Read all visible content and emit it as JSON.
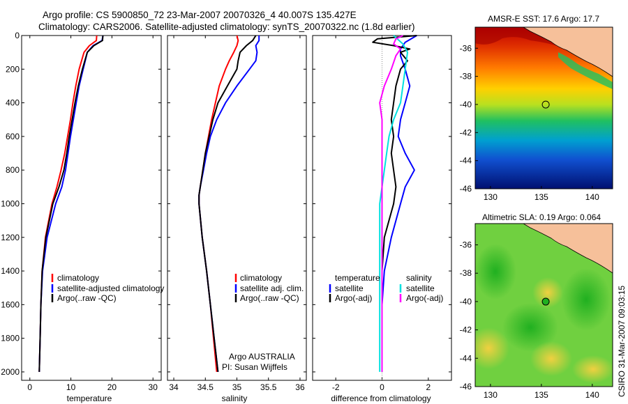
{
  "figure": {
    "title_line1": "Argo profile: CS 5900850_72 23-Mar-2007 20070326_4 40.007S 135.427E",
    "title_line2": "Climatology: CARS2006. Satellite-adjusted climatology: synTS_20070322.nc (1.8d earlier)",
    "side_caption": "CSIRO 31-Mar-2007 09:03:15",
    "credit_line1": "Argo AUSTRALIA",
    "credit_line2": "PI: Susan Wijffels"
  },
  "colors": {
    "climatology": "#ff0000",
    "satellite": "#0000ff",
    "argo": "#000000",
    "salinity_satellite": "#00e0e0",
    "salinity_argo": "#ff00ff"
  },
  "chart_data": [
    {
      "type": "line",
      "xlabel": "temperature",
      "ylabel": "",
      "xlim": [
        -2,
        32
      ],
      "ylim": [
        2050,
        0
      ],
      "xticks": [
        "0",
        "10",
        "20",
        "30"
      ],
      "yticks": [
        "0",
        "200",
        "400",
        "600",
        "800",
        "1000",
        "1200",
        "1400",
        "1600",
        "1800",
        "2000"
      ],
      "legend": [
        "climatology",
        "satellite-adjusted climatology",
        "Argo(..raw -QC)"
      ],
      "legend_position": "lower-middle",
      "series": [
        {
          "name": "climatology",
          "color": "#ff0000",
          "depth": [
            0,
            30,
            60,
            100,
            150,
            200,
            300,
            400,
            500,
            600,
            700,
            800,
            900,
            1000,
            1200,
            1400,
            1600,
            1800,
            2000
          ],
          "values": [
            16.3,
            16.2,
            14.5,
            13.2,
            12.6,
            12.0,
            11.2,
            10.5,
            9.9,
            9.2,
            8.5,
            7.6,
            6.6,
            5.4,
            3.8,
            3.0,
            2.7,
            2.5,
            2.3
          ]
        },
        {
          "name": "satellite-adjusted climatology",
          "color": "#0000ff",
          "depth": [
            0,
            30,
            60,
            100,
            150,
            200,
            300,
            400,
            500,
            600,
            700,
            800,
            900,
            1000,
            1200,
            1400,
            1600,
            1800,
            2000
          ],
          "values": [
            17.8,
            17.6,
            15.4,
            14.0,
            13.5,
            13.0,
            12.0,
            11.3,
            10.6,
            9.9,
            9.3,
            8.7,
            7.8,
            6.3,
            4.2,
            3.1,
            2.7,
            2.5,
            2.3
          ]
        },
        {
          "name": "Argo(..raw -QC)",
          "color": "#000000",
          "depth": [
            0,
            30,
            60,
            100,
            150,
            200,
            300,
            400,
            500,
            600,
            700,
            800,
            900,
            1000,
            1200,
            1400,
            1600,
            1800,
            2000
          ],
          "values": [
            17.8,
            17.7,
            15.6,
            14.0,
            13.4,
            12.8,
            11.8,
            11.0,
            10.3,
            9.6,
            9.0,
            8.3,
            7.1,
            5.6,
            3.9,
            3.0,
            2.7,
            2.5,
            2.3
          ]
        }
      ]
    },
    {
      "type": "line",
      "xlabel": "salinity",
      "ylabel": "",
      "xlim": [
        33.9,
        36.1
      ],
      "ylim": [
        2050,
        0
      ],
      "xticks": [
        "34",
        "34.5",
        "35",
        "35.5",
        "36"
      ],
      "legend": [
        "climatology",
        "satellite adj. clim.",
        "Argo(..raw -QC)"
      ],
      "legend_position": "lower-right",
      "series": [
        {
          "name": "climatology",
          "color": "#ff0000",
          "depth": [
            0,
            30,
            60,
            100,
            150,
            200,
            300,
            400,
            500,
            600,
            700,
            800,
            900,
            950,
            1000,
            1200,
            1400,
            1600,
            1800,
            2000
          ],
          "values": [
            35.0,
            35.02,
            35.0,
            34.95,
            34.88,
            34.82,
            34.72,
            34.66,
            34.6,
            34.55,
            34.5,
            34.46,
            34.42,
            34.4,
            34.4,
            34.45,
            34.52,
            34.58,
            34.63,
            34.68
          ]
        },
        {
          "name": "satellite adj. clim.",
          "color": "#0000ff",
          "depth": [
            0,
            30,
            60,
            100,
            150,
            200,
            300,
            400,
            500,
            600,
            700,
            800,
            900,
            950,
            1000,
            1200,
            1400,
            1600,
            1800,
            2000
          ],
          "values": [
            35.35,
            35.35,
            35.3,
            35.32,
            35.3,
            35.2,
            35.0,
            34.82,
            34.68,
            34.58,
            34.52,
            34.47,
            34.42,
            34.4,
            34.4,
            34.45,
            34.52,
            34.58,
            34.64,
            34.7
          ]
        },
        {
          "name": "Argo(..raw -QC)",
          "color": "#000000",
          "depth": [
            0,
            30,
            60,
            100,
            150,
            200,
            300,
            400,
            500,
            600,
            700,
            800,
            900,
            950,
            1000,
            1200,
            1400,
            1600,
            1800,
            2000
          ],
          "values": [
            35.3,
            35.25,
            35.15,
            35.05,
            35.02,
            35.0,
            34.85,
            34.7,
            34.62,
            34.56,
            34.5,
            34.46,
            34.42,
            34.4,
            34.4,
            34.45,
            34.52,
            34.58,
            34.64,
            34.7
          ]
        }
      ]
    },
    {
      "type": "line",
      "xlabel": "difference from climatology",
      "ylabel": "",
      "xlim": [
        -3,
        3
      ],
      "ylim": [
        2050,
        0
      ],
      "xticks": [
        "-2",
        "0",
        "2"
      ],
      "legend_groups": [
        {
          "title": "temperature",
          "items": [
            "satellite",
            "Argo(-adj)"
          ]
        },
        {
          "title": "salinity",
          "items": [
            "satellite",
            "Argo(-adj)"
          ]
        }
      ],
      "legend_position": "lower",
      "series": [
        {
          "name": "temperature satellite",
          "color": "#0000ff",
          "depth": [
            0,
            40,
            80,
            120,
            200,
            300,
            400,
            500,
            600,
            700,
            800,
            900,
            1000,
            1200,
            1400,
            1600,
            1800,
            2000
          ],
          "values": [
            1.5,
            1.0,
            0.8,
            0.8,
            1.0,
            1.2,
            1.0,
            0.8,
            0.7,
            1.0,
            1.4,
            1.0,
            0.8,
            0.4,
            0.1,
            0.0,
            0.0,
            0.0
          ]
        },
        {
          "name": "temperature Argo(-adj)",
          "color": "#000000",
          "depth": [
            0,
            20,
            40,
            60,
            80,
            100,
            150,
            200,
            300,
            400,
            500,
            600,
            700,
            800,
            900,
            1000,
            1200,
            1400,
            1600,
            1800,
            2000
          ],
          "values": [
            1.5,
            -0.2,
            -0.4,
            0.5,
            1.2,
            0.8,
            1.1,
            0.8,
            0.6,
            0.5,
            0.4,
            0.5,
            0.4,
            0.5,
            0.6,
            0.5,
            0.1,
            0.0,
            0.0,
            0.0,
            0.0
          ]
        },
        {
          "name": "salinity satellite",
          "color": "#00e0e0",
          "depth": [
            0,
            50,
            100,
            200,
            300,
            400,
            500,
            600,
            700,
            800,
            900,
            1000,
            1200,
            1400,
            1600,
            1800,
            2000
          ],
          "values": [
            0.5,
            0.9,
            1.1,
            1.0,
            0.9,
            0.8,
            0.5,
            0.3,
            0.2,
            0.1,
            0.0,
            -0.1,
            -0.1,
            -0.1,
            -0.1,
            -0.1,
            -0.1
          ]
        },
        {
          "name": "salinity Argo(-adj)",
          "color": "#ff00ff",
          "depth": [
            0,
            20,
            50,
            80,
            120,
            200,
            300,
            400,
            500,
            600,
            700,
            800,
            900,
            1000,
            1200,
            1400,
            1600,
            1800,
            2000
          ],
          "values": [
            0.9,
            0.6,
            0.5,
            0.8,
            0.6,
            0.4,
            0.1,
            -0.1,
            0.0,
            0.0,
            0.0,
            0.0,
            0.0,
            0.0,
            0.0,
            0.0,
            0.0,
            0.0,
            0.0
          ]
        }
      ]
    },
    {
      "type": "heatmap",
      "title": "AMSR-E SST: 17.6 Argo: 17.7",
      "xlim": [
        128.5,
        142
      ],
      "ylim": [
        -46,
        -34.5
      ],
      "xticks": [
        "130",
        "135",
        "140"
      ],
      "yticks": [
        "-36",
        "-38",
        "-40",
        "-42",
        "-44",
        "-46"
      ],
      "marker": {
        "lon": 135.427,
        "lat": -40.007
      }
    },
    {
      "type": "heatmap",
      "title": "Altimetric SLA: 0.19 Argo: 0.064",
      "xlim": [
        128.5,
        142
      ],
      "ylim": [
        -46,
        -34.5
      ],
      "xticks": [
        "130",
        "135",
        "140"
      ],
      "yticks": [
        "-36",
        "-38",
        "-40",
        "-42",
        "-44",
        "-46"
      ],
      "marker": {
        "lon": 135.427,
        "lat": -40.007
      }
    }
  ]
}
